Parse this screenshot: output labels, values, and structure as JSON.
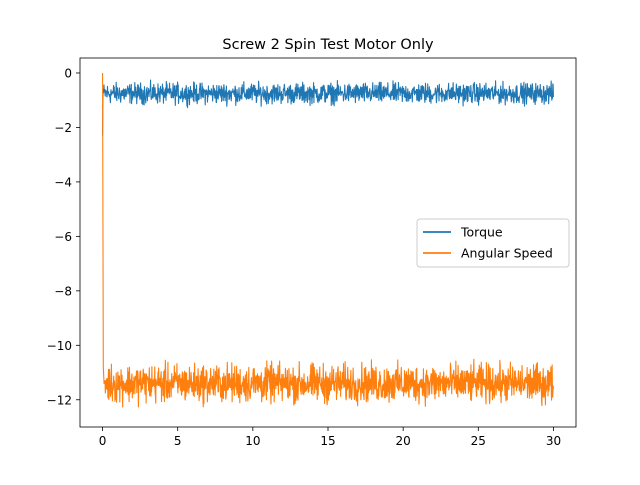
{
  "chart_data": {
    "type": "line",
    "title": "Screw 2 Spin Test Motor Only",
    "xlabel": "",
    "ylabel": "",
    "xlim": [
      -1.5,
      31.5
    ],
    "ylim": [
      -13.0,
      0.55
    ],
    "xticks": [
      0,
      5,
      10,
      15,
      20,
      25,
      30
    ],
    "yticks": [
      0,
      -2,
      -4,
      -6,
      -8,
      -10,
      -12
    ],
    "grid": false,
    "legend": "center-right",
    "series": [
      {
        "name": "Torque",
        "color": "#1f77b4",
        "pattern": "noisy band",
        "x_range": [
          0,
          30
        ],
        "initial_points": [
          [
            0,
            -2.3
          ],
          [
            0.02,
            -0.9
          ],
          [
            0.05,
            -0.6
          ]
        ],
        "center": -0.75,
        "band": [
          -1.35,
          -0.25
        ]
      },
      {
        "name": "Angular Speed",
        "color": "#ff7f0e",
        "pattern": "noisy band",
        "x_range": [
          0,
          30
        ],
        "initial_points": [
          [
            0,
            0.0
          ],
          [
            0.02,
            -4.0
          ],
          [
            0.05,
            -10.8
          ],
          [
            0.1,
            -11.4
          ]
        ],
        "center": -11.4,
        "band": [
          -12.45,
          -10.4
        ]
      }
    ]
  }
}
